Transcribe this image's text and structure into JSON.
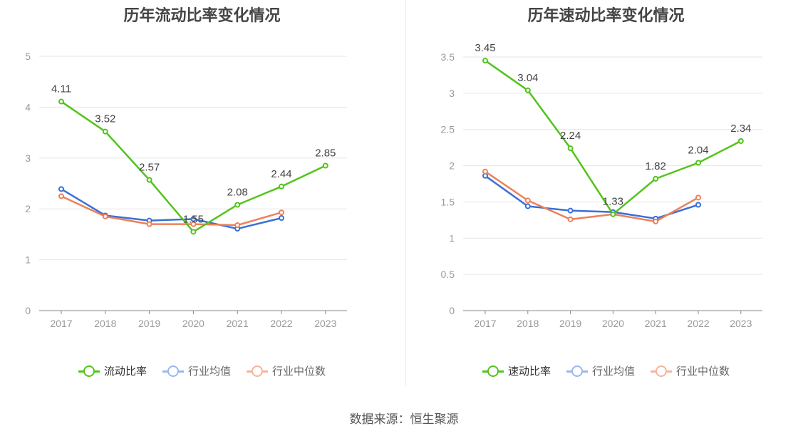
{
  "source_text": "数据来源：恒生聚源",
  "colors": {
    "main": "#52c41a",
    "avg": "#3a6fd8",
    "median": "#ee8059",
    "grid": "#e6e6e6",
    "axis": "#888888",
    "text": "#999999"
  },
  "chart_data": [
    {
      "type": "line",
      "title": "历年流动比率变化情况",
      "categories": [
        "2017",
        "2018",
        "2019",
        "2020",
        "2021",
        "2022",
        "2023"
      ],
      "ylim": [
        0,
        5
      ],
      "yticks": [
        "0",
        "1",
        "2",
        "3",
        "4",
        "5"
      ],
      "grid": true,
      "legend": "bottom",
      "series": [
        {
          "name": "流动比率",
          "values": [
            4.11,
            3.52,
            2.57,
            1.55,
            2.08,
            2.44,
            2.85
          ],
          "labels": [
            "4.11",
            "3.52",
            "2.57",
            "1.55",
            "2.08",
            "2.44",
            "2.85"
          ]
        },
        {
          "name": "行业均值",
          "values": [
            2.39,
            1.87,
            1.77,
            1.8,
            1.61,
            1.82,
            null
          ]
        },
        {
          "name": "行业中位数",
          "values": [
            2.25,
            1.85,
            1.7,
            1.7,
            1.68,
            1.93,
            null
          ]
        }
      ]
    },
    {
      "type": "line",
      "title": "历年速动比率变化情况",
      "categories": [
        "2017",
        "2018",
        "2019",
        "2020",
        "2021",
        "2022",
        "2023"
      ],
      "ylim": [
        0,
        3.5
      ],
      "yticks": [
        "0",
        "0.5",
        "1",
        "1.5",
        "2",
        "2.5",
        "3",
        "3.5"
      ],
      "grid": true,
      "legend": "bottom",
      "series": [
        {
          "name": "速动比率",
          "values": [
            3.45,
            3.04,
            2.24,
            1.33,
            1.82,
            2.04,
            2.34
          ],
          "labels": [
            "3.45",
            "3.04",
            "2.24",
            "1.33",
            "1.82",
            "2.04",
            "2.34"
          ]
        },
        {
          "name": "行业均值",
          "values": [
            1.86,
            1.44,
            1.38,
            1.36,
            1.27,
            1.46,
            null
          ]
        },
        {
          "name": "行业中位数",
          "values": [
            1.92,
            1.52,
            1.26,
            1.33,
            1.23,
            1.56,
            null
          ]
        }
      ]
    }
  ]
}
